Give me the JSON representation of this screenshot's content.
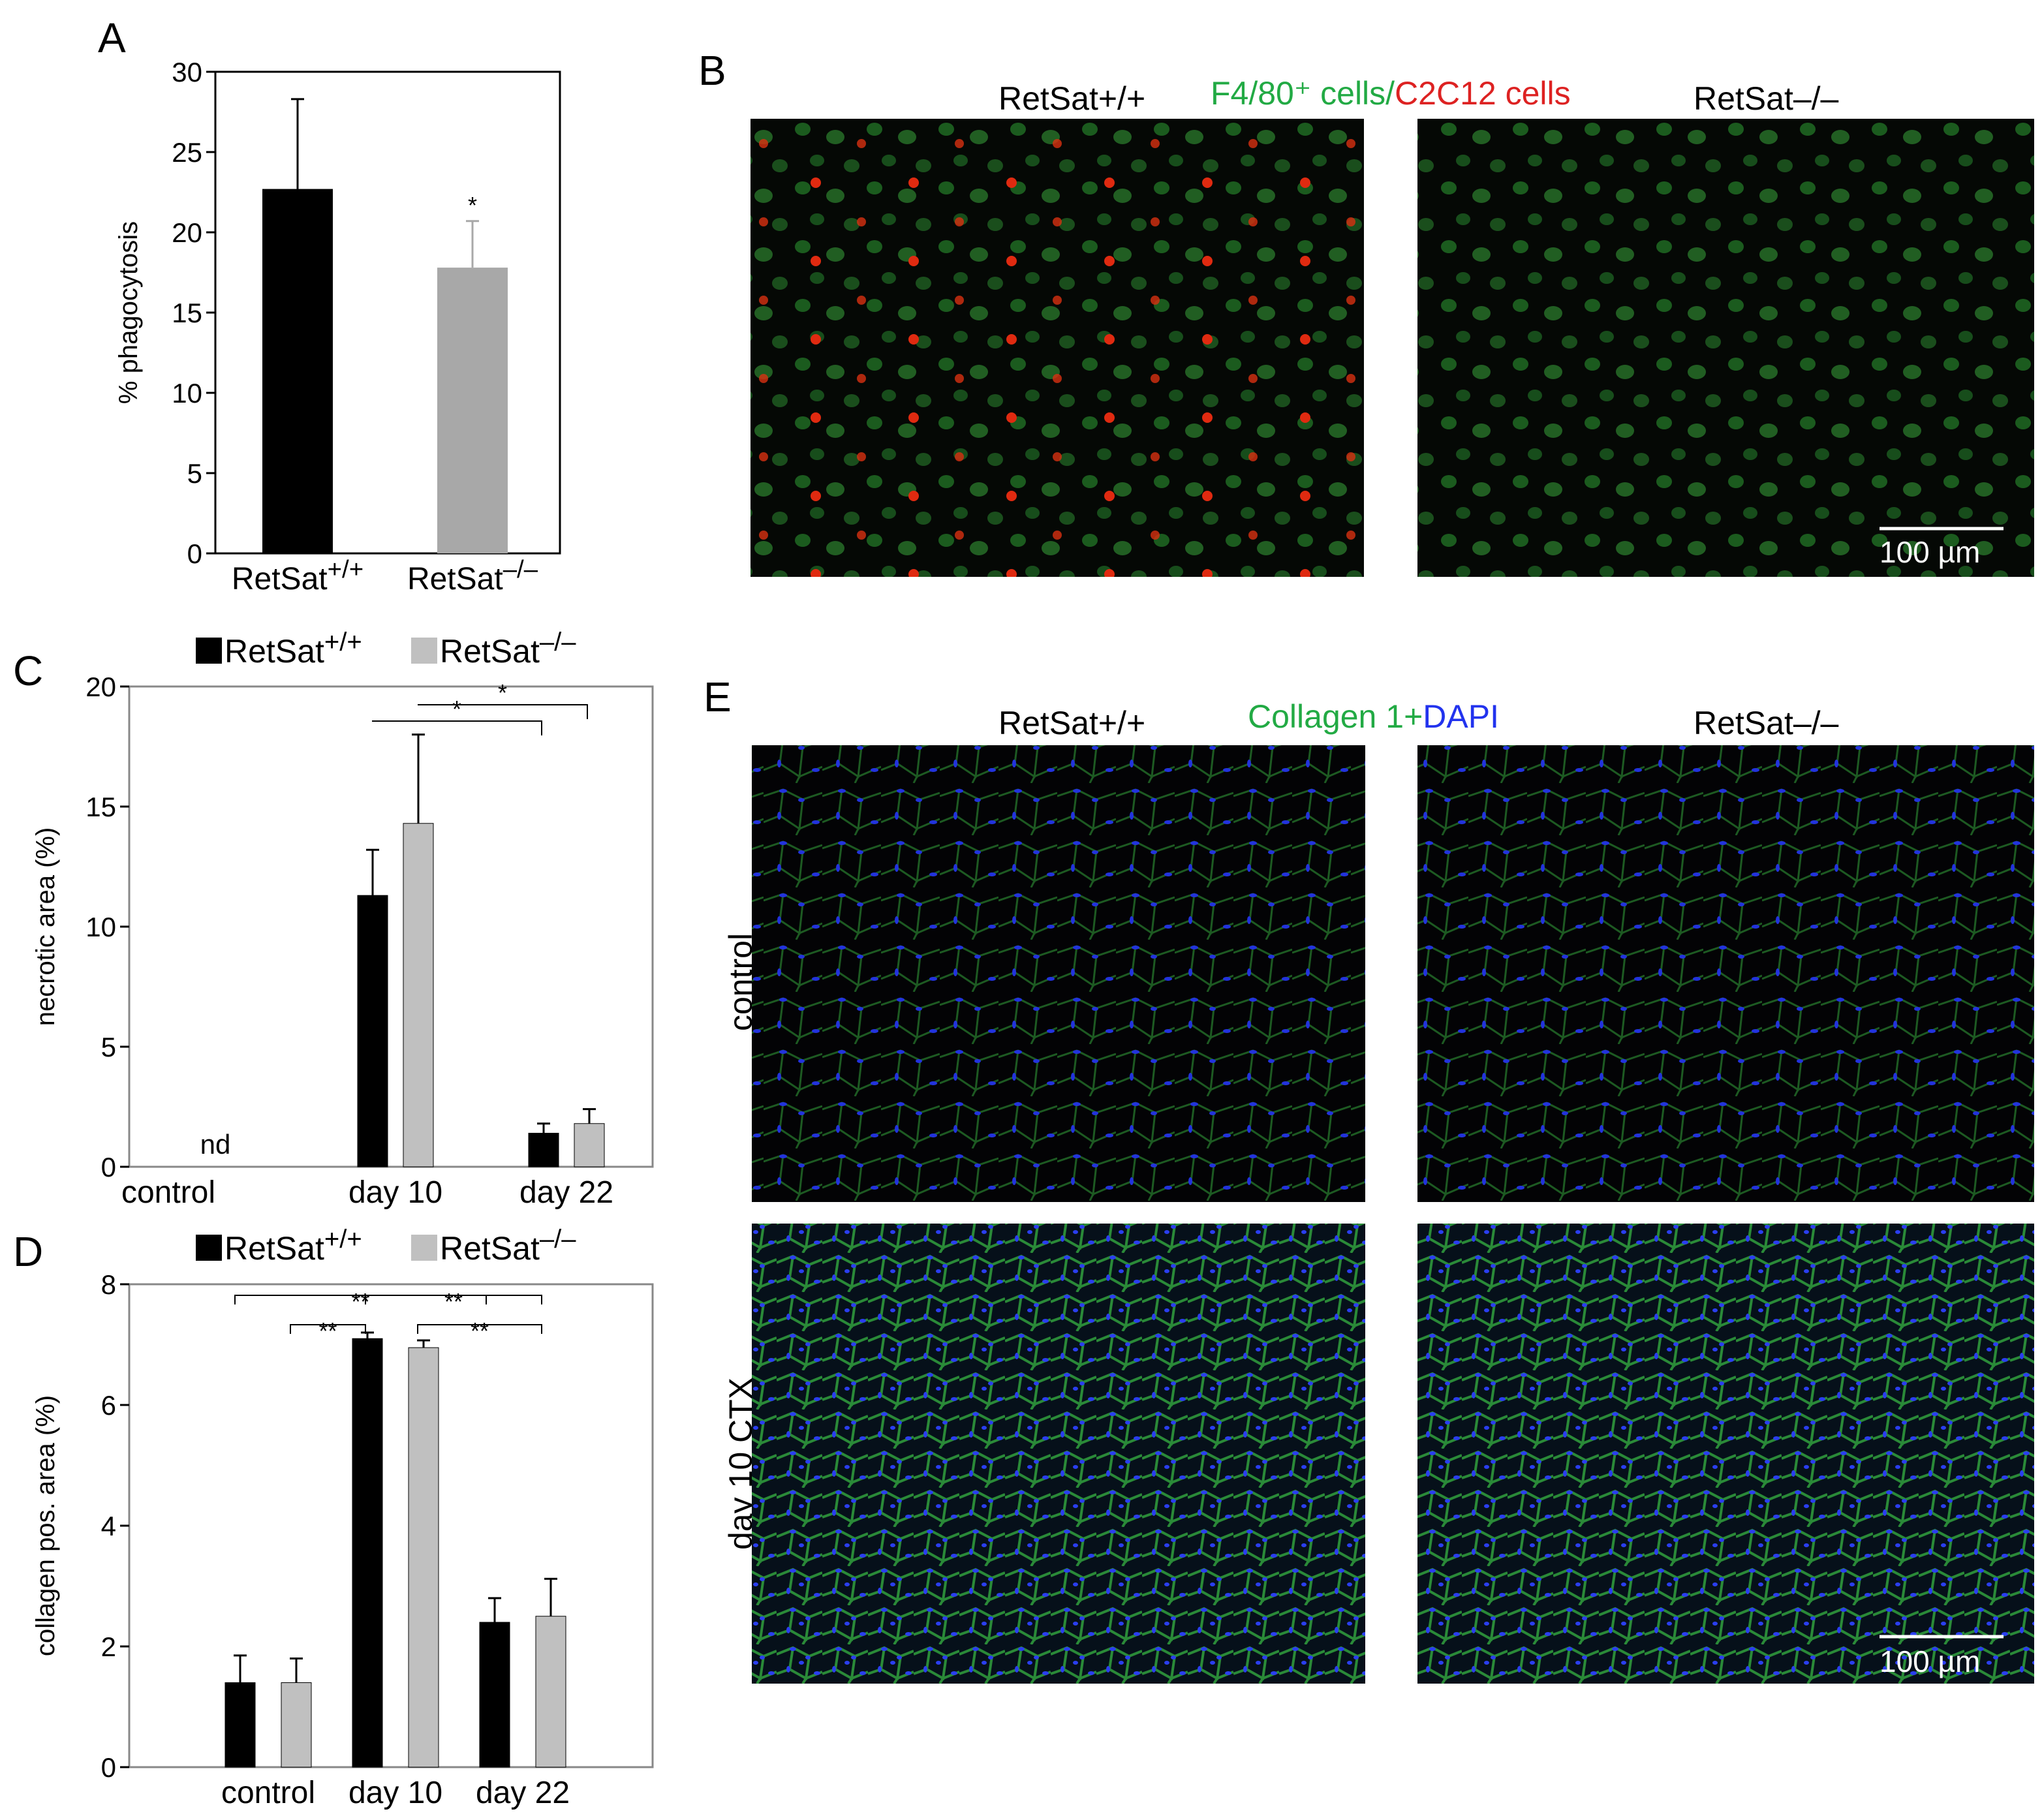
{
  "panels": {
    "A": "A",
    "B": "B",
    "C": "C",
    "D": "D",
    "E": "E"
  },
  "colors": {
    "wt": "#000000",
    "ko": "#a8a8a8",
    "ko_light": "#c0c0c0",
    "green": "#22aa44",
    "red": "#dd2222",
    "blue": "#2233ee"
  },
  "chart_data": [
    {
      "panel": "A",
      "type": "bar",
      "categories": [
        "RetSat+/+",
        "RetSat–/–"
      ],
      "values": [
        22.7,
        17.8
      ],
      "errors": [
        5.6,
        2.9
      ],
      "ylabel": "% phagocytosis",
      "ylim": [
        0,
        30
      ],
      "yticks": [
        0,
        5,
        10,
        15,
        20,
        25,
        30
      ],
      "significance": [
        "",
        "*"
      ]
    },
    {
      "panel": "C",
      "type": "bar",
      "categories": [
        "control",
        "day 10",
        "day 22"
      ],
      "series": [
        {
          "name": "RetSat+/+",
          "values": [
            0,
            11.3,
            1.4
          ],
          "errors": [
            0,
            1.9,
            0.4
          ]
        },
        {
          "name": "RetSat–/–",
          "values": [
            0,
            14.3,
            1.8
          ],
          "errors": [
            0,
            3.7,
            0.6
          ]
        }
      ],
      "annotation_nd": "nd",
      "ylabel": "necrotic area (%)",
      "ylim": [
        0,
        20
      ],
      "yticks": [
        0,
        5,
        10,
        15,
        20
      ],
      "legend_position": "top",
      "significance": [
        {
          "from": "day 10 RetSat+/+",
          "to": "day 22 RetSat+/+",
          "label": "*"
        },
        {
          "from": "day 10 RetSat–/–",
          "to": "day 22 RetSat–/–",
          "label": "*"
        }
      ]
    },
    {
      "panel": "D",
      "type": "bar",
      "categories": [
        "control",
        "day 10",
        "day 22"
      ],
      "series": [
        {
          "name": "RetSat+/+",
          "values": [
            1.4,
            7.1,
            2.4
          ],
          "errors": [
            0.45,
            0.1,
            0.4
          ]
        },
        {
          "name": "RetSat–/–",
          "values": [
            1.4,
            6.95,
            2.5
          ],
          "errors": [
            0.4,
            0.12,
            0.62
          ]
        }
      ],
      "ylabel": "collagen pos. area (%)",
      "ylim": [
        0,
        8
      ],
      "yticks": [
        0,
        2,
        4,
        6,
        8
      ],
      "legend_position": "top",
      "significance": [
        {
          "from": "control",
          "to": "day 10",
          "label": "**"
        },
        {
          "from": "day 10",
          "to": "day 22",
          "label": "**"
        },
        {
          "from": "control",
          "to": "day 10",
          "label": "**"
        },
        {
          "from": "day 10",
          "to": "day 22",
          "label": "**"
        }
      ]
    }
  ],
  "micro_B": {
    "left_label": "RetSat+/+",
    "title_green": "F4/80⁺ cells/",
    "title_red": "C2C12 cells",
    "right_label": "RetSat–/–",
    "scale_bar": "100 µm"
  },
  "micro_E": {
    "left_label": "RetSat+/+",
    "title_green": "Collagen 1+",
    "title_blue": "DAPI",
    "right_label": "RetSat–/–",
    "row_labels": [
      "control",
      "day 10 CTX"
    ],
    "scale_bar": "100 µm"
  }
}
